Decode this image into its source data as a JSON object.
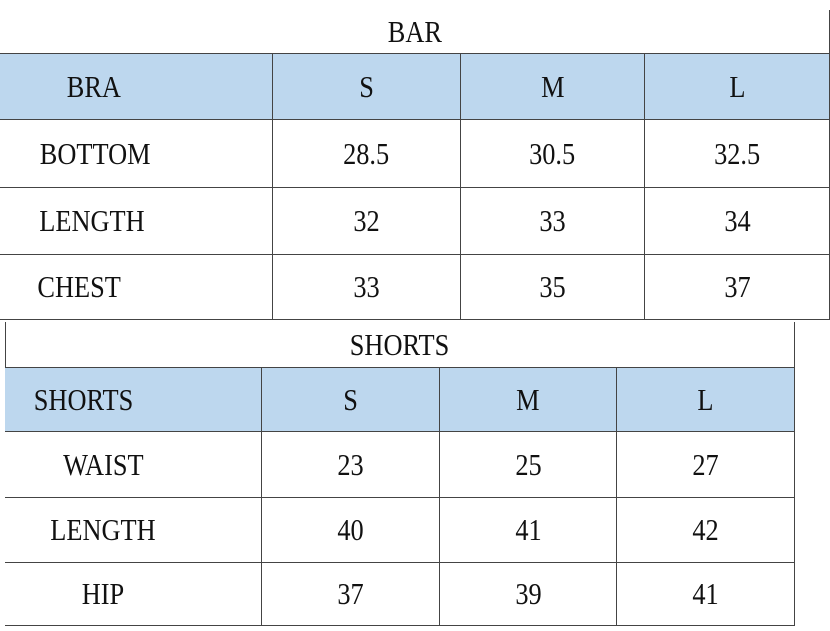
{
  "tables": [
    {
      "title": "BAR",
      "header": [
        "BRA",
        "S",
        "M",
        "L"
      ],
      "rows": [
        [
          "BOTTOM",
          "28.5",
          "30.5",
          "32.5"
        ],
        [
          "LENGTH",
          "32",
          "33",
          "34"
        ],
        [
          "CHEST",
          "33",
          "35",
          "37"
        ]
      ]
    },
    {
      "title": "SHORTS",
      "header": [
        "SHORTS",
        "S",
        "M",
        "L"
      ],
      "rows": [
        [
          "WAIST",
          "23",
          "25",
          "27"
        ],
        [
          "LENGTH",
          "40",
          "41",
          "42"
        ],
        [
          "HIP",
          "37",
          "39",
          "41"
        ]
      ]
    }
  ]
}
